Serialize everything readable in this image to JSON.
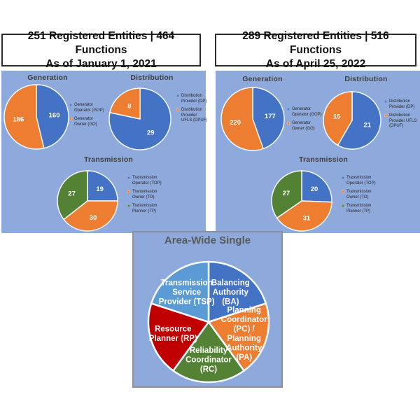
{
  "panels": [
    {
      "id": "jan-2021",
      "title_lines": [
        "251 Registered Entities | 464 Functions",
        "As of January 1, 2021"
      ]
    },
    {
      "id": "apr-2022",
      "title_lines": [
        "289 Registered Entities | 516 Functions",
        "As of April 25, 2022"
      ]
    }
  ],
  "colors": {
    "panel_background": "#8EA9DB",
    "blue": "#4472C4",
    "orange": "#ED7D31",
    "green": "#548235",
    "red": "#C00000",
    "light_blue": "#5B9BD5",
    "slice_border": "#F7FAFE",
    "title_text": "#3f3f3f",
    "big_title_text": "#595959"
  },
  "chart_data": [
    {
      "type": "pie",
      "title": "Generation",
      "panel": "jan-2021",
      "categories": [
        "Generator Operator (GOP)",
        "Generator Owner (GO)"
      ],
      "values": [
        160,
        186
      ],
      "colors": [
        "#4472C4",
        "#ED7D31"
      ],
      "show_values": true,
      "legend_position": "right"
    },
    {
      "type": "pie",
      "title": "Distribution",
      "panel": "jan-2021",
      "categories": [
        "Distribution Provider (DP)",
        "Distribution Provider UFLS (DPUF)"
      ],
      "values": [
        29,
        8
      ],
      "colors": [
        "#4472C4",
        "#ED7D31"
      ],
      "show_values": true,
      "legend_position": "right"
    },
    {
      "type": "pie",
      "title": "Transmission",
      "panel": "jan-2021",
      "categories": [
        "Transmission Operator (TOP)",
        "Transmission Owner (TO)",
        "Transmission Planner (TP)"
      ],
      "values": [
        19,
        30,
        27
      ],
      "colors": [
        "#4472C4",
        "#ED7D31",
        "#548235"
      ],
      "show_values": true,
      "legend_position": "right"
    },
    {
      "type": "pie",
      "title": "Generation",
      "panel": "apr-2022",
      "categories": [
        "Generator Operator (GOP)",
        "Generator Owner (GO)"
      ],
      "values": [
        177,
        220
      ],
      "colors": [
        "#4472C4",
        "#ED7D31"
      ],
      "show_values": true,
      "legend_position": "right"
    },
    {
      "type": "pie",
      "title": "Distribution",
      "panel": "apr-2022",
      "categories": [
        "Distribution Provider (DP)",
        "Distribution Provider UFLS (DPUF)"
      ],
      "values": [
        21,
        15
      ],
      "colors": [
        "#4472C4",
        "#ED7D31"
      ],
      "show_values": true,
      "legend_position": "right"
    },
    {
      "type": "pie",
      "title": "Transmission",
      "panel": "apr-2022",
      "categories": [
        "Transmission Operator (TOP)",
        "Transmission Owner (TO)",
        "Transmission Planner (TP)"
      ],
      "values": [
        20,
        31,
        27
      ],
      "colors": [
        "#4472C4",
        "#ED7D31",
        "#548235"
      ],
      "show_values": true,
      "legend_position": "right"
    },
    {
      "type": "pie",
      "title": "Area-Wide Single",
      "panel": "area-wide",
      "categories": [
        "Balancing Authority (BA)",
        "Planning Coordinator (PC) / Planning Authority (PA)",
        "Reliability Coordinator (RC)",
        "Resource Planner (RP)",
        "Transmission Service Provider (TSP)"
      ],
      "values": [
        20,
        20,
        20,
        20,
        20
      ],
      "colors": [
        "#4472C4",
        "#ED7D31",
        "#548235",
        "#C00000",
        "#5B9BD5"
      ],
      "show_values": false,
      "legend_position": "none",
      "labels_inside": [
        [
          "Balancing",
          "Authority",
          "(BA)"
        ],
        [
          "Planning",
          "Coordinator",
          "(PC) /",
          "Planning",
          "Authority",
          "(PA)"
        ],
        [
          "Reliability",
          "Coordinator",
          "(RC)"
        ],
        [
          "Resource",
          "Planner (RP)"
        ],
        [
          "Transmission",
          "Service",
          "Provider (TSP)"
        ]
      ]
    }
  ]
}
